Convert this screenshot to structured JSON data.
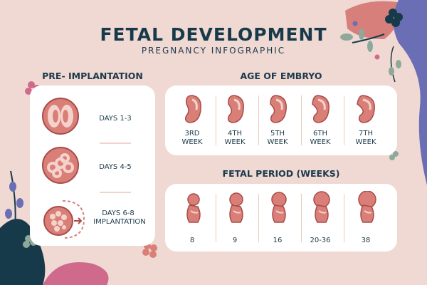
{
  "header": {
    "title": "FETAL DEVELOPMENT",
    "subtitle": "PREGNANCY INFOGRAPHIC"
  },
  "pre_implantation": {
    "heading": "PRE- IMPLANTATION",
    "items": [
      {
        "label": "DAYS 1-3"
      },
      {
        "label": "DAYS 4-5"
      },
      {
        "label": "DAYS 6-8",
        "sublabel": "IMPLANTATION"
      }
    ]
  },
  "embryo": {
    "heading": "AGE OF EMBRYO",
    "weeks": [
      {
        "l1": "3RD",
        "l2": "WEEK"
      },
      {
        "l1": "4TH",
        "l2": "WEEK"
      },
      {
        "l1": "5TH",
        "l2": "WEEK"
      },
      {
        "l1": "6TH",
        "l2": "WEEK"
      },
      {
        "l1": "7TH",
        "l2": "WEEK"
      }
    ]
  },
  "fetal": {
    "heading": "FETAL PERIOD (WEEKS)",
    "weeks": [
      "8",
      "9",
      "16",
      "20-36",
      "38"
    ]
  },
  "colors": {
    "background": "#f0d8d3",
    "navy": "#173a4a",
    "salmon": "#d97f78",
    "light_pink": "#f5d2cb",
    "purple": "#6a6fb5",
    "sage": "#8fa89c"
  }
}
